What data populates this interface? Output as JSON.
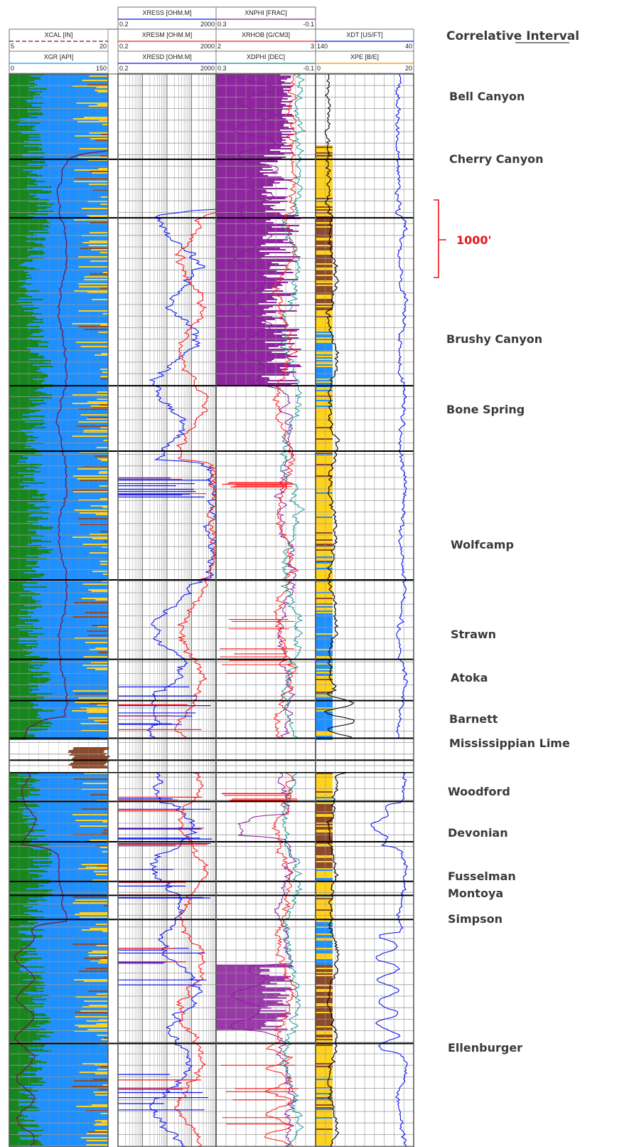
{
  "chart_data": {
    "type": "line",
    "title": "Correlative Interval",
    "scale_bar_label": "1000'",
    "colors": {
      "gamma_shale": "#17861e",
      "gamma_sand": "#1e90ff",
      "yellow_fill": "#ffd21e",
      "brown_fill": "#8b4a2b",
      "caliper": "#7a1040",
      "resist_deep": "#0a14f0",
      "resist_medium": "#ff1a1a",
      "resist_shallow": "#0a14f0",
      "neutron": "#8a1a9a",
      "density": "#ff1a1a",
      "dphi": "#008a8a",
      "sonic": "#0a14f0",
      "pe": "#000000",
      "formation_line": "#000000",
      "scale_bar": "#e8141b"
    },
    "tracks": [
      {
        "id": "track1",
        "curves": [
          {
            "name": "XCAL [IN]",
            "min": "5",
            "max": "20",
            "color": "#7a1040",
            "dashed": true
          },
          {
            "name": "XGR [API]",
            "min": "0",
            "max": "150",
            "color": "#1e90ff",
            "dashed": false
          }
        ]
      },
      {
        "id": "track2",
        "log_scale": true,
        "curves": [
          {
            "name": "XRESS [OHM.M]",
            "min": "0.2",
            "max": "2000",
            "color": "#0a14f0",
            "dashed": false
          },
          {
            "name": "XRESM [OHM.M]",
            "min": "0.2",
            "max": "2000",
            "color": "#ff1a1a",
            "dashed": false
          },
          {
            "name": "XRESD [OHM.M]",
            "min": "0.2",
            "max": "2000",
            "color": "#0a14f0",
            "dashed": false
          }
        ]
      },
      {
        "id": "track3",
        "curves": [
          {
            "name": "XNPHI [FRAC]",
            "min": "0.3",
            "max": "-0.1",
            "color": "#8a1a9a",
            "dashed": false
          },
          {
            "name": "XRHOB [G/CM3]",
            "min": "2",
            "max": "3",
            "color": "#ff1a1a",
            "dashed": false
          },
          {
            "name": "XDPHI [DEC]",
            "min": "0.3",
            "max": "-0.1",
            "color": "#008a8a",
            "dashed": false
          }
        ]
      },
      {
        "id": "track4",
        "curves": [
          {
            "name": "XDT [US/FT]",
            "min": "140",
            "max": "40",
            "color": "#0a14f0",
            "dashed": false
          },
          {
            "name": "XPE [B/E]",
            "min": "0",
            "max": "20",
            "color": "#ff8c00",
            "dashed": false
          }
        ]
      }
    ],
    "formations": [
      {
        "name": "Bell Canyon",
        "depth_frac": 0.0795
      },
      {
        "name": "Cherry Canyon",
        "depth_frac": 0.134
      },
      {
        "name": "Brushy Canyon",
        "depth_frac": 0.2905
      },
      {
        "name": "Bone Spring",
        "depth_frac": 0.3515
      },
      {
        "name": "Wolfcamp",
        "depth_frac": 0.4715
      },
      {
        "name": "Strawn",
        "depth_frac": 0.5455
      },
      {
        "name": "Atoka",
        "depth_frac": 0.584
      },
      {
        "name": "Barnett",
        "depth_frac": 0.619
      },
      {
        "name": "Mississippian Lime",
        "depth_frac": 0.6395
      },
      {
        "name": "Woodford",
        "depth_frac": 0.678
      },
      {
        "name": "Devonian",
        "depth_frac": 0.7155
      },
      {
        "name": "Fusselman",
        "depth_frac": 0.7525
      },
      {
        "name": "Montoya",
        "depth_frac": 0.7655
      },
      {
        "name": "Simpson",
        "depth_frac": 0.788
      },
      {
        "name": "Ellenburger",
        "depth_frac": 0.9035
      }
    ],
    "legend_position": "right",
    "grid": true
  }
}
